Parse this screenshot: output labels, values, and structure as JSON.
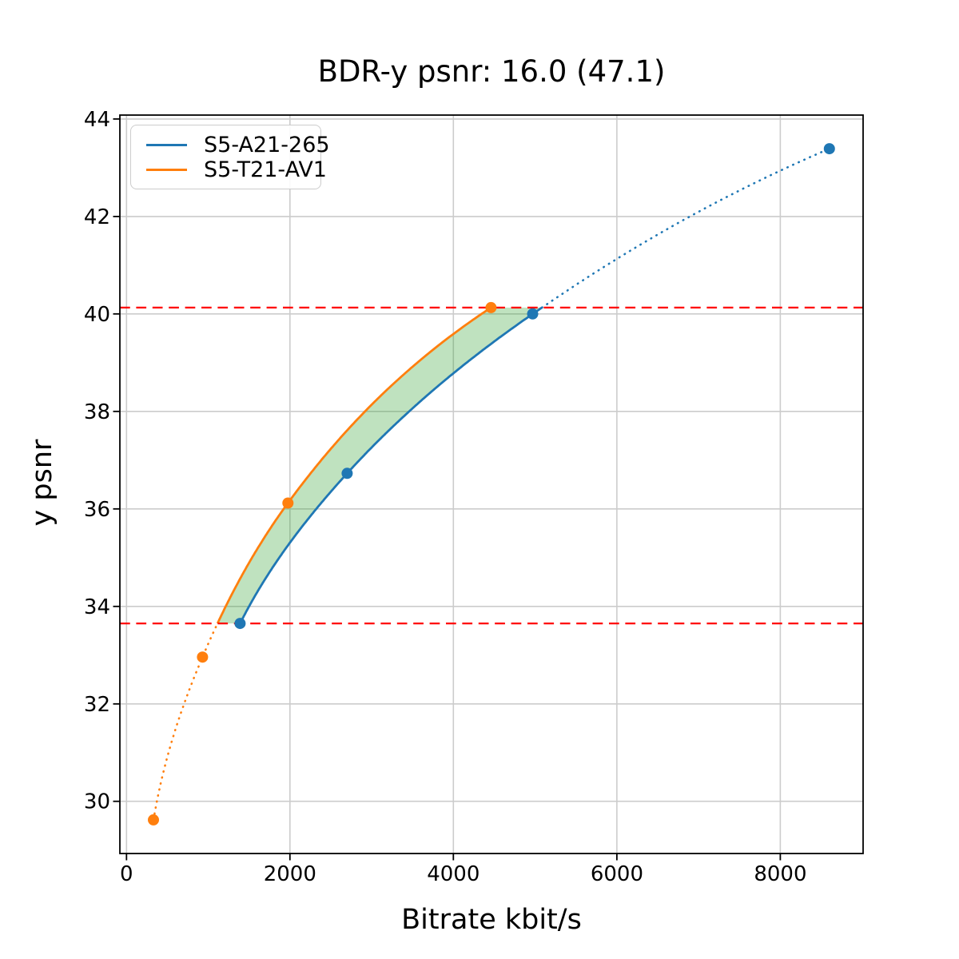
{
  "chart_data": {
    "type": "line",
    "title": "BDR-y psnr: 16.0 (47.1)",
    "xlabel": "Bitrate kbit/s",
    "ylabel": "y psnr",
    "xlim": [
      -81,
      9013
    ],
    "ylim": [
      28.93,
      44.08
    ],
    "x_ticks": [
      0,
      2000,
      4000,
      6000,
      8000
    ],
    "y_ticks": [
      30,
      32,
      34,
      36,
      38,
      40,
      42,
      44
    ],
    "grid": true,
    "grid_color": "#cccccc",
    "legend_position": "upper-left",
    "series": [
      {
        "name": "S5-A21-265",
        "color": "#1f77b4",
        "marker": "circle",
        "points": [
          [
            1390,
            33.65
          ],
          [
            2700,
            36.73
          ],
          [
            4970,
            40.0
          ],
          [
            8600,
            43.39
          ]
        ]
      },
      {
        "name": "S5-T21-AV1",
        "color": "#ff7f0e",
        "marker": "circle",
        "points": [
          [
            330,
            29.62
          ],
          [
            930,
            32.96
          ],
          [
            1975,
            36.12
          ],
          [
            4460,
            40.13
          ]
        ]
      }
    ],
    "overlap_y_range": [
      33.65,
      40.13
    ],
    "hlines": {
      "values": [
        33.65,
        40.13
      ],
      "color": "#ff0000",
      "style": "dashed"
    },
    "shaded_region": {
      "between": [
        "S5-T21-AV1",
        "S5-A21-265"
      ],
      "color": "#2ca02c",
      "alpha": 0.3
    },
    "line_style_note": "solid inside overlap_y_range, dotted outside"
  }
}
